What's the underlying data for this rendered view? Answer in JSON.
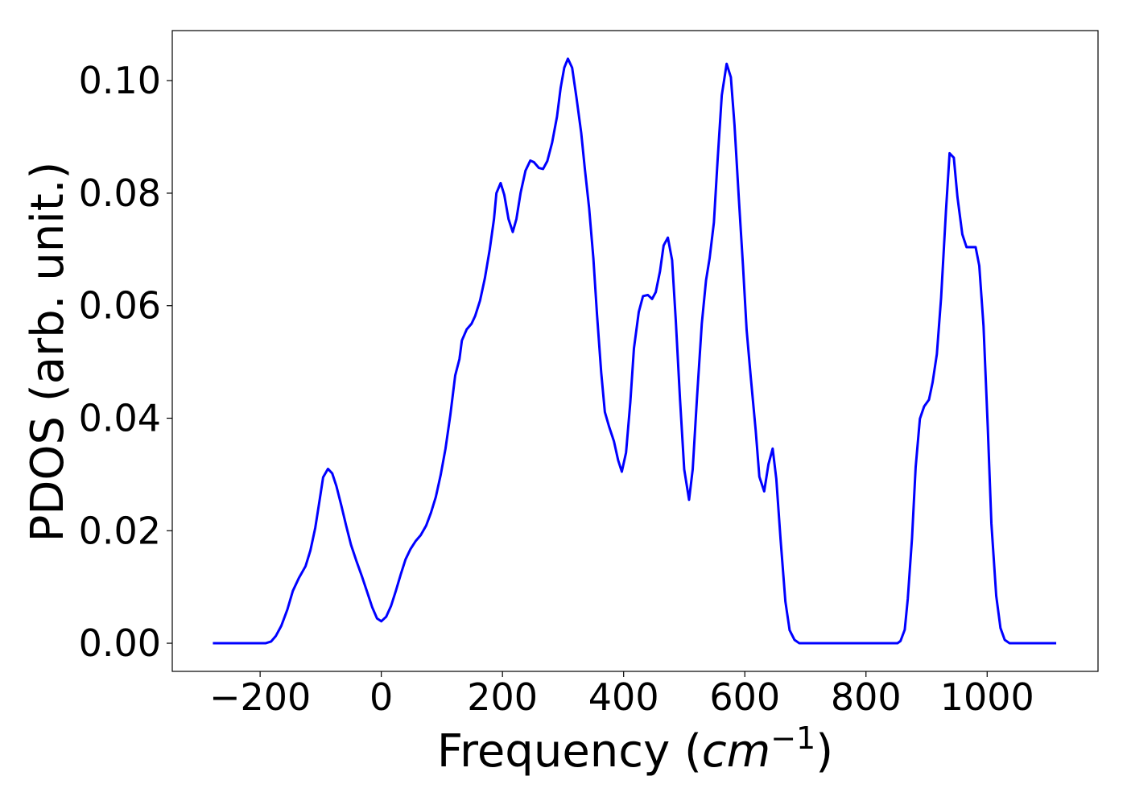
{
  "chart_data": {
    "type": "line",
    "xlabel": "Frequency (cm−1)",
    "ylabel": "PDOS (arb. unit.)",
    "xlim": [
      -345,
      1183
    ],
    "ylim": [
      -0.005,
      0.1089
    ],
    "xticks": [
      {
        "value": -200,
        "label": "−200"
      },
      0,
      200,
      400,
      600,
      800,
      1000
    ],
    "yticks": [
      {
        "value": 0,
        "label": "0.00"
      },
      {
        "value": 0.02,
        "label": "0.02"
      },
      {
        "value": 0.04,
        "label": "0.04"
      },
      {
        "value": 0.06,
        "label": "0.06"
      },
      {
        "value": 0.08,
        "label": "0.08"
      },
      {
        "value": 0.1,
        "label": "0.10"
      }
    ],
    "grid": false,
    "series": [
      {
        "color": "#0000ff",
        "x": [
          -278,
          -191,
          -182,
          -174,
          -165,
          -155,
          -146,
          -136,
          -125,
          -117,
          -109,
          -102,
          -96,
          -88,
          -81,
          -74,
          -66,
          -58,
          -50,
          -41,
          -32,
          -23,
          -15,
          -7,
          0,
          8,
          16,
          24,
          32,
          40,
          48,
          57,
          65,
          74,
          82,
          90,
          98,
          106,
          114,
          122,
          129,
          133,
          141,
          149,
          155,
          163,
          171,
          179,
          186,
          190,
          197,
          203,
          210,
          217,
          223,
          230,
          238,
          246,
          252,
          260,
          267,
          274,
          282,
          290,
          296,
          302,
          308,
          315,
          322,
          330,
          336,
          343,
          350,
          356,
          363,
          369,
          376,
          384,
          391,
          397,
          404,
          411,
          417,
          425,
          432,
          440,
          447,
          453,
          460,
          466,
          473,
          480,
          486,
          493,
          500,
          508,
          514,
          521,
          529,
          536,
          542,
          549,
          555,
          562,
          570,
          577,
          583,
          590,
          597,
          603,
          610,
          618,
          624,
          632,
          639,
          646,
          652,
          659,
          667,
          674,
          682,
          690,
          852,
          857,
          864,
          869,
          876,
          882,
          889,
          896,
          904,
          910,
          917,
          924,
          932,
          938,
          945,
          951,
          959,
          966,
          981,
          987,
          994,
          1001,
          1007,
          1015,
          1022,
          1029,
          1037,
          1114
        ],
        "values": [
          0,
          0,
          0.0003,
          0.0013,
          0.0031,
          0.006,
          0.0093,
          0.0116,
          0.0137,
          0.0165,
          0.0205,
          0.0253,
          0.0295,
          0.031,
          0.0302,
          0.0279,
          0.0245,
          0.0209,
          0.0175,
          0.0146,
          0.0119,
          0.009,
          0.0064,
          0.0044,
          0.0039,
          0.0047,
          0.0066,
          0.0093,
          0.0122,
          0.0149,
          0.0167,
          0.0182,
          0.0192,
          0.0209,
          0.0232,
          0.026,
          0.0299,
          0.0346,
          0.0406,
          0.0476,
          0.0505,
          0.0538,
          0.0558,
          0.0568,
          0.0582,
          0.0609,
          0.0649,
          0.07,
          0.0754,
          0.08,
          0.0818,
          0.0797,
          0.0754,
          0.0731,
          0.0754,
          0.0801,
          0.084,
          0.0858,
          0.0855,
          0.0845,
          0.0843,
          0.0857,
          0.089,
          0.0936,
          0.0987,
          0.1023,
          0.1039,
          0.1023,
          0.0971,
          0.0907,
          0.0843,
          0.0774,
          0.0685,
          0.0585,
          0.0481,
          0.0411,
          0.0385,
          0.0359,
          0.0325,
          0.0305,
          0.0339,
          0.0428,
          0.0524,
          0.0589,
          0.0617,
          0.0619,
          0.0612,
          0.0624,
          0.0661,
          0.0707,
          0.0721,
          0.0681,
          0.0575,
          0.0435,
          0.0309,
          0.0255,
          0.0309,
          0.0435,
          0.0568,
          0.0645,
          0.0685,
          0.0748,
          0.0857,
          0.0974,
          0.103,
          0.1006,
          0.0921,
          0.0793,
          0.0671,
          0.0557,
          0.0471,
          0.0378,
          0.0296,
          0.027,
          0.0318,
          0.0346,
          0.0292,
          0.0185,
          0.0074,
          0.0023,
          0.0006,
          0,
          0,
          0.0004,
          0.0024,
          0.0079,
          0.0187,
          0.0313,
          0.0399,
          0.0421,
          0.0433,
          0.0464,
          0.0514,
          0.0614,
          0.0768,
          0.0871,
          0.0863,
          0.0793,
          0.0727,
          0.0704,
          0.0704,
          0.0671,
          0.0564,
          0.0385,
          0.0213,
          0.0084,
          0.0027,
          0.0006,
          0,
          0
        ]
      }
    ]
  }
}
